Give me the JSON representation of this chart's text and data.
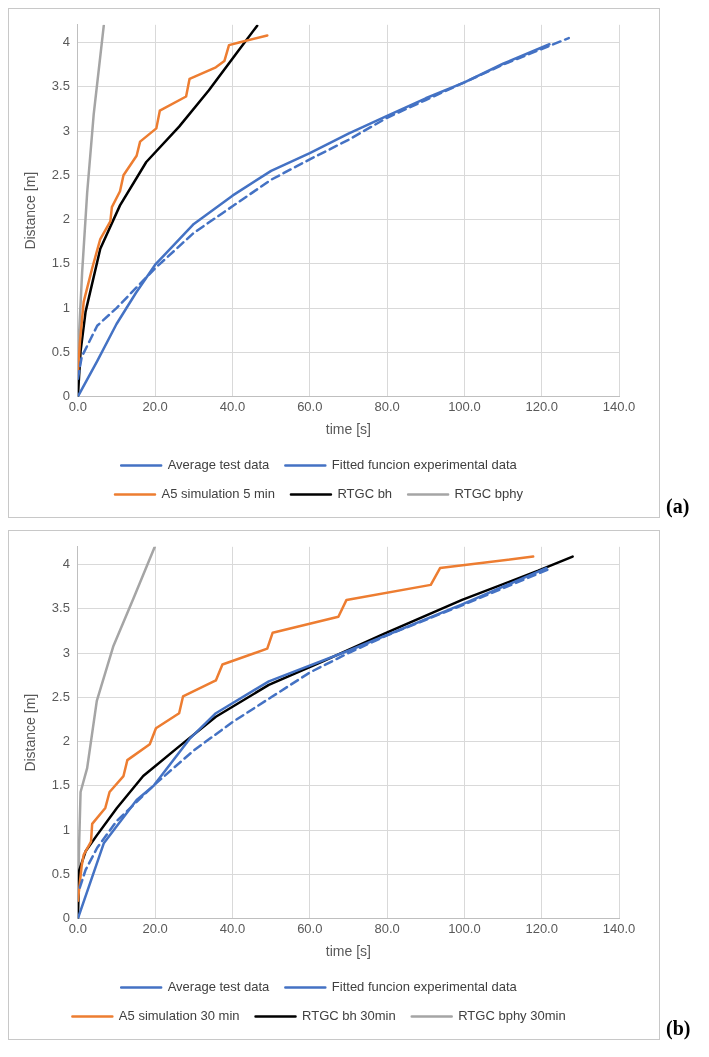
{
  "chart_data": [
    {
      "type": "line",
      "xlabel": "time [s]",
      "ylabel": "Distance [m]",
      "xlim": [
        0,
        140
      ],
      "ylim": [
        0,
        4.2
      ],
      "xticks": [
        {
          "value": 0,
          "label": "0.0"
        },
        {
          "value": 20,
          "label": "20.0"
        },
        {
          "value": 40,
          "label": "40.0"
        },
        {
          "value": 60,
          "label": "60.0"
        },
        {
          "value": 80,
          "label": "80.0"
        },
        {
          "value": 100,
          "label": "100.0"
        },
        {
          "value": 120,
          "label": "120.0"
        },
        {
          "value": 140,
          "label": "140.0"
        }
      ],
      "yticks": [
        0,
        0.5,
        1,
        1.5,
        2,
        2.5,
        3,
        3.5,
        4
      ],
      "grid": true,
      "legend": "bottom",
      "marker": "none",
      "annotations": [
        "(a)"
      ],
      "series": [
        {
          "name": "Average test data",
          "color": "#4472c4",
          "line_style": "solid",
          "x": [
            0,
            5,
            10,
            15,
            20,
            30,
            40,
            50,
            60,
            70,
            80,
            90,
            100,
            110,
            122
          ],
          "values": [
            0,
            0.4,
            0.82,
            1.17,
            1.49,
            1.95,
            2.27,
            2.55,
            2.75,
            2.97,
            3.17,
            3.37,
            3.55,
            3.76,
            3.98
          ]
        },
        {
          "name": "Fitted funcion experimental data",
          "color": "#4472c4",
          "line_style": "dashed",
          "x": [
            0,
            1,
            5,
            10,
            20,
            30,
            40,
            50,
            60,
            70,
            80,
            90,
            100,
            110,
            127
          ],
          "values": [
            0.2,
            0.45,
            0.8,
            1.0,
            1.45,
            1.85,
            2.15,
            2.45,
            2.68,
            2.9,
            3.15,
            3.35,
            3.55,
            3.75,
            4.05
          ]
        },
        {
          "name": "A5 simulation 5 min",
          "color": "#ed7d31",
          "line_style": "solid",
          "x": [
            0,
            0.5,
            1.5,
            3.7,
            5.8,
            8.4,
            8.8,
            10.9,
            11.8,
            15.2,
            16.1,
            20.3,
            21.2,
            28.0,
            28.9,
            35.7,
            37.9,
            39.1,
            41.7,
            49
          ],
          "values": [
            0.25,
            0.6,
            1.07,
            1.45,
            1.78,
            1.98,
            2.14,
            2.32,
            2.5,
            2.72,
            2.88,
            3.03,
            3.23,
            3.39,
            3.59,
            3.72,
            3.79,
            3.97,
            4.0,
            4.08
          ]
        },
        {
          "name": "RTGC bh",
          "color": "#000000",
          "line_style": "solid",
          "x": [
            0,
            0.7,
            2.0,
            5.8,
            10.9,
            17.7,
            26.2,
            33.9,
            40.7,
            46.4
          ],
          "values": [
            0,
            0.51,
            0.96,
            1.67,
            2.16,
            2.65,
            3.05,
            3.46,
            3.86,
            4.19
          ]
        },
        {
          "name": "RTGC bphy",
          "color": "#a5a5a5",
          "line_style": "solid",
          "x": [
            0,
            0.3,
            1.1,
            2.4,
            4.1,
            6.7
          ],
          "values": [
            0,
            0.7,
            1.4,
            2.3,
            3.19,
            4.19
          ]
        }
      ]
    },
    {
      "type": "line",
      "xlabel": "time [s]",
      "ylabel": "Distance [m]",
      "xlim": [
        0,
        140
      ],
      "ylim": [
        0,
        4.2
      ],
      "xticks": [
        {
          "value": 0,
          "label": "0.0"
        },
        {
          "value": 20,
          "label": "20.0"
        },
        {
          "value": 40,
          "label": "40.0"
        },
        {
          "value": 60,
          "label": "60.0"
        },
        {
          "value": 80,
          "label": "80.0"
        },
        {
          "value": 100,
          "label": "100.0"
        },
        {
          "value": 120,
          "label": "120.0"
        },
        {
          "value": 140,
          "label": "140.0"
        }
      ],
      "yticks": [
        0,
        0.5,
        1,
        1.5,
        2,
        2.5,
        3,
        3.5,
        4
      ],
      "grid": true,
      "legend": "bottom",
      "marker": "none",
      "annotations": [
        "(b)"
      ],
      "series": [
        {
          "name": "Average test data",
          "color": "#4472c4",
          "line_style": "solid",
          "x": [
            0,
            6.7,
            15.2,
            19.6,
            28.9,
            35.7,
            49.4,
            70.8,
            99.4,
            121.2
          ],
          "values": [
            0,
            0.85,
            1.34,
            1.5,
            2.03,
            2.32,
            2.68,
            3.04,
            3.55,
            3.96
          ]
        },
        {
          "name": "Fitted funcion experimental data",
          "color": "#4472c4",
          "line_style": "dashed",
          "x": [
            0.5,
            2,
            5,
            10,
            20,
            30,
            40,
            50,
            60,
            70,
            80,
            100,
            122
          ],
          "values": [
            0.35,
            0.55,
            0.8,
            1.1,
            1.52,
            1.9,
            2.22,
            2.5,
            2.78,
            3.0,
            3.2,
            3.55,
            3.95
          ]
        },
        {
          "name": "A5 simulation 30 min",
          "color": "#ed7d31",
          "line_style": "solid",
          "x": [
            0,
            1,
            1.5,
            3.4,
            3.7,
            7.1,
            8.2,
            11.8,
            12.8,
            18.6,
            20.2,
            26.2,
            27.2,
            35.7,
            37.4,
            49,
            50.4,
            67.4,
            69.5,
            91.3,
            93.7,
            117.8
          ],
          "values": [
            0.2,
            0.6,
            0.72,
            0.87,
            1.07,
            1.25,
            1.43,
            1.61,
            1.79,
            1.97,
            2.15,
            2.32,
            2.51,
            2.69,
            2.87,
            3.05,
            3.23,
            3.41,
            3.6,
            3.77,
            3.96,
            4.09
          ]
        },
        {
          "name": "RTGC bh 30min",
          "color": "#000000",
          "line_style": "solid",
          "x": [
            0,
            0.3,
            2.0,
            4.9,
            10.1,
            16.9,
            25.5,
            35.7,
            49.4,
            63.1,
            79.3,
            99.4,
            119.1,
            128.0
          ],
          "values": [
            0,
            0.54,
            0.76,
            0.94,
            1.25,
            1.61,
            1.92,
            2.28,
            2.64,
            2.9,
            3.22,
            3.6,
            3.93,
            4.09
          ]
        },
        {
          "name": "RTGC bphy 30min",
          "color": "#a5a5a5",
          "line_style": "solid",
          "x": [
            0,
            0.3,
            0.7,
            2.4,
            4.9,
            9.2,
            14.4,
            19.9
          ],
          "values": [
            0,
            0.8,
            1.43,
            1.7,
            2.46,
            3.08,
            3.62,
            4.2
          ]
        }
      ]
    }
  ]
}
